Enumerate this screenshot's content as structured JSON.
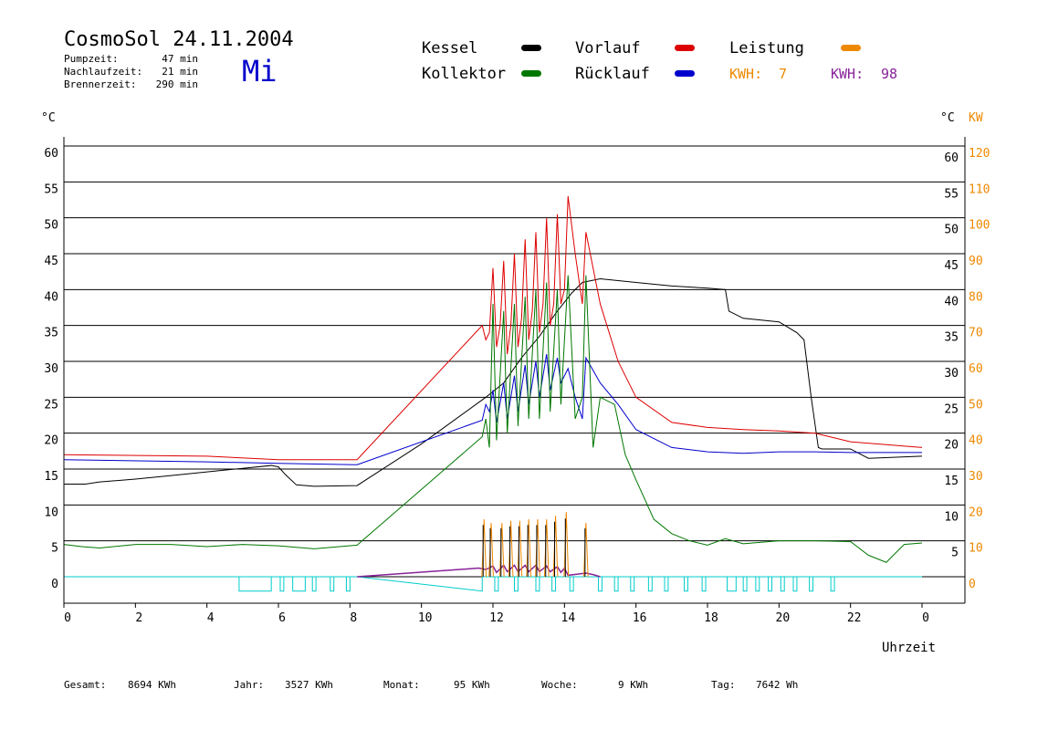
{
  "header": {
    "title": "CosmoSol 24.11.2004",
    "pump_label": "Pumpzeit:",
    "pump_value": "47 min",
    "after_label": "Nachlaufzeit:",
    "after_value": "21 min",
    "burner_label": "Brennerzeit:",
    "burner_value": "290 min",
    "weekday": "Mi"
  },
  "legend": {
    "kessel": "Kessel",
    "kollektor": "Kollektor",
    "vorlauf": "Vorlauf",
    "ruecklauf": "Rücklauf",
    "leistung": "Leistung",
    "kwh1_label": "KWH:",
    "kwh1_value": "7",
    "kwh2_label": "KWH:",
    "kwh2_value": "98"
  },
  "axes": {
    "left_unit": "°C",
    "right_unit": "°C",
    "right_unit2": "KW",
    "x_title": "Uhrzeit"
  },
  "footer": {
    "gesamt_label": "Gesamt:",
    "gesamt_value": "8694 KWh",
    "jahr_label": "Jahr:",
    "jahr_value": "3527 KWh",
    "monat_label": "Monat:",
    "monat_value": "95 KWh",
    "woche_label": "Woche:",
    "woche_value": "9 KWh",
    "tag_label": "Tag:",
    "tag_value": "7642 Wh"
  },
  "colors": {
    "kessel": "#000000",
    "kollektor": "#007700",
    "vorlauf": "#dd0000",
    "ruecklauf": "#0000cc",
    "leistung": "#ee8800",
    "kwh2": "#882299",
    "pump": "#00cccc",
    "weekday": "#0000cc"
  },
  "chart_data": {
    "type": "line",
    "xlabel": "Uhrzeit",
    "xlim": [
      0,
      24
    ],
    "x_ticks": [
      "0",
      "2",
      "4",
      "6",
      "8",
      "10",
      "12",
      "14",
      "16",
      "18",
      "20",
      "22",
      "0"
    ],
    "ylim": [
      0,
      60
    ],
    "y_ticks": [
      "0",
      "5",
      "10",
      "15",
      "20",
      "25",
      "30",
      "35",
      "40",
      "45",
      "50",
      "55",
      "60"
    ],
    "y_ticks_right": [
      "5",
      "10",
      "15",
      "20",
      "25",
      "30",
      "35",
      "40",
      "45",
      "50",
      "55",
      "60"
    ],
    "y2lim": [
      0,
      120
    ],
    "y2_ticks": [
      "0",
      "10",
      "20",
      "30",
      "40",
      "50",
      "60",
      "70",
      "80",
      "90",
      "100",
      "110",
      "120"
    ],
    "grid": true,
    "series": [
      {
        "name": "Kessel",
        "color": "#000000",
        "points": [
          [
            0,
            12.9
          ],
          [
            0.6,
            12.9
          ],
          [
            1,
            13.2
          ],
          [
            2,
            13.6
          ],
          [
            3,
            14.1
          ],
          [
            4,
            14.6
          ],
          [
            5,
            15.1
          ],
          [
            5.8,
            15.5
          ],
          [
            6,
            15.3
          ],
          [
            6.2,
            14.2
          ],
          [
            6.5,
            12.8
          ],
          [
            7,
            12.6
          ],
          [
            8.2,
            12.7
          ],
          [
            10,
            18.5
          ],
          [
            11.8,
            25
          ],
          [
            12.3,
            27
          ],
          [
            12.8,
            30.5
          ],
          [
            13.3,
            33.5
          ],
          [
            13.8,
            37
          ],
          [
            14.2,
            39.5
          ],
          [
            14.5,
            41
          ],
          [
            15,
            41.5
          ],
          [
            16,
            41
          ],
          [
            17,
            40.5
          ],
          [
            18,
            40.2
          ],
          [
            18.5,
            40
          ],
          [
            18.6,
            37
          ],
          [
            19,
            36
          ],
          [
            20,
            35.5
          ],
          [
            20.5,
            34
          ],
          [
            20.7,
            33
          ],
          [
            20.9,
            25
          ],
          [
            21.1,
            18
          ],
          [
            21.2,
            17.8
          ],
          [
            22,
            17.8
          ],
          [
            22.5,
            16.5
          ],
          [
            24,
            16.8
          ]
        ]
      },
      {
        "name": "Vorlauf",
        "color": "#dd0000",
        "points": [
          [
            0,
            17
          ],
          [
            4,
            16.8
          ],
          [
            6,
            16.3
          ],
          [
            8.2,
            16.3
          ],
          [
            11.7,
            35
          ],
          [
            11.8,
            33
          ],
          [
            11.9,
            34
          ],
          [
            12,
            43
          ],
          [
            12.1,
            32
          ],
          [
            12.2,
            35
          ],
          [
            12.3,
            44
          ],
          [
            12.4,
            31
          ],
          [
            12.5,
            35
          ],
          [
            12.6,
            45
          ],
          [
            12.7,
            32
          ],
          [
            12.8,
            36
          ],
          [
            12.9,
            47
          ],
          [
            13.0,
            33
          ],
          [
            13.1,
            37
          ],
          [
            13.2,
            48
          ],
          [
            13.3,
            34
          ],
          [
            13.4,
            38
          ],
          [
            13.5,
            50
          ],
          [
            13.6,
            35
          ],
          [
            13.7,
            38
          ],
          [
            13.8,
            50.5
          ],
          [
            13.9,
            38
          ],
          [
            14.0,
            40
          ],
          [
            14.1,
            53
          ],
          [
            14.3,
            45
          ],
          [
            14.5,
            38
          ],
          [
            14.6,
            48
          ],
          [
            15,
            38
          ],
          [
            15.5,
            30
          ],
          [
            16,
            25
          ],
          [
            17,
            21.5
          ],
          [
            18,
            20.8
          ],
          [
            19,
            20.5
          ],
          [
            20,
            20.3
          ],
          [
            21,
            20
          ],
          [
            22,
            18.8
          ],
          [
            24,
            18
          ]
        ]
      },
      {
        "name": "Rücklauf",
        "color": "#0000cc",
        "points": [
          [
            0,
            16.3
          ],
          [
            4,
            16
          ],
          [
            6,
            15.8
          ],
          [
            8.2,
            15.6
          ],
          [
            11.7,
            21.8
          ],
          [
            11.8,
            24
          ],
          [
            11.9,
            23
          ],
          [
            12,
            26
          ],
          [
            12.1,
            21.5
          ],
          [
            12.3,
            27
          ],
          [
            12.4,
            22
          ],
          [
            12.6,
            28
          ],
          [
            12.7,
            23
          ],
          [
            12.9,
            29.5
          ],
          [
            13.0,
            24
          ],
          [
            13.2,
            30
          ],
          [
            13.3,
            25
          ],
          [
            13.5,
            31
          ],
          [
            13.6,
            26
          ],
          [
            13.8,
            30.5
          ],
          [
            13.9,
            27
          ],
          [
            14.1,
            29
          ],
          [
            14.3,
            25
          ],
          [
            14.5,
            22
          ],
          [
            14.6,
            30.5
          ],
          [
            15,
            27
          ],
          [
            15.5,
            24
          ],
          [
            16,
            20.5
          ],
          [
            17,
            18
          ],
          [
            18,
            17.4
          ],
          [
            19,
            17.2
          ],
          [
            20,
            17.4
          ],
          [
            21,
            17.4
          ],
          [
            22,
            17.3
          ],
          [
            24,
            17.3
          ]
        ]
      },
      {
        "name": "Kollektor",
        "color": "#007700",
        "points": [
          [
            0,
            4.5
          ],
          [
            0.5,
            4.2
          ],
          [
            1,
            4
          ],
          [
            2,
            4.5
          ],
          [
            3,
            4.5
          ],
          [
            4,
            4.2
          ],
          [
            5,
            4.5
          ],
          [
            6,
            4.3
          ],
          [
            7,
            3.9
          ],
          [
            8.2,
            4.4
          ],
          [
            11.7,
            19.5
          ],
          [
            11.8,
            22
          ],
          [
            11.9,
            18
          ],
          [
            12,
            38
          ],
          [
            12.1,
            19
          ],
          [
            12.3,
            37
          ],
          [
            12.4,
            20
          ],
          [
            12.6,
            38
          ],
          [
            12.7,
            21
          ],
          [
            12.9,
            39
          ],
          [
            13.0,
            22
          ],
          [
            13.2,
            40
          ],
          [
            13.3,
            22
          ],
          [
            13.5,
            41
          ],
          [
            13.6,
            23
          ],
          [
            13.8,
            40
          ],
          [
            13.9,
            24
          ],
          [
            14.1,
            42
          ],
          [
            14.3,
            22
          ],
          [
            14.5,
            25
          ],
          [
            14.6,
            42
          ],
          [
            14.8,
            18
          ],
          [
            15,
            25
          ],
          [
            15.4,
            24
          ],
          [
            15.7,
            17
          ],
          [
            16,
            13.5
          ],
          [
            16.5,
            8
          ],
          [
            17,
            6
          ],
          [
            17.5,
            5
          ],
          [
            18,
            4.4
          ],
          [
            18.5,
            5.3
          ],
          [
            19,
            4.6
          ],
          [
            20,
            5
          ],
          [
            21,
            5
          ],
          [
            22,
            4.9
          ],
          [
            22.5,
            3
          ],
          [
            23,
            2
          ],
          [
            23.5,
            4.5
          ],
          [
            24,
            4.7
          ]
        ]
      }
    ],
    "pumpe": {
      "name": "Pumpe",
      "color": "#00cccc",
      "points": [
        [
          0,
          0
        ],
        [
          8.2,
          0
        ],
        [
          11.7,
          -2
        ],
        [
          11.7,
          0
        ],
        [
          24,
          0
        ]
      ],
      "on_intervals": [
        [
          4.9,
          5.8
        ],
        [
          6.05,
          6.15
        ],
        [
          6.4,
          6.75
        ],
        [
          6.95,
          7.05
        ],
        [
          7.45,
          7.55
        ],
        [
          7.9,
          8.0
        ],
        [
          12.05,
          12.15
        ],
        [
          12.6,
          12.7
        ],
        [
          13.2,
          13.3
        ],
        [
          13.65,
          13.75
        ],
        [
          14.15,
          14.25
        ],
        [
          14.95,
          15.05
        ],
        [
          15.4,
          15.5
        ],
        [
          15.85,
          15.95
        ],
        [
          16.35,
          16.45
        ],
        [
          16.8,
          16.9
        ],
        [
          17.35,
          17.45
        ],
        [
          17.85,
          17.95
        ],
        [
          18.55,
          18.8
        ],
        [
          19.0,
          19.1
        ],
        [
          19.35,
          19.45
        ],
        [
          19.7,
          19.8
        ],
        [
          20.05,
          20.15
        ],
        [
          20.4,
          20.5
        ],
        [
          20.85,
          20.95
        ],
        [
          21.45,
          21.55
        ]
      ]
    },
    "leistung": {
      "name": "Leistung",
      "color": "#ee8800",
      "peaks": [
        [
          11.75,
          8
        ],
        [
          11.95,
          7.5
        ],
        [
          12.25,
          7.5
        ],
        [
          12.5,
          7.8
        ],
        [
          12.75,
          7.8
        ],
        [
          13.0,
          8
        ],
        [
          13.25,
          8
        ],
        [
          13.5,
          8
        ],
        [
          13.75,
          8.5
        ],
        [
          14.05,
          9
        ],
        [
          14.6,
          7.5
        ]
      ]
    },
    "kwh2": {
      "color": "#882299",
      "points": [
        [
          8.2,
          0
        ],
        [
          11.6,
          1.2
        ],
        [
          11.8,
          1
        ],
        [
          12.0,
          1.5
        ],
        [
          12.1,
          0.6
        ],
        [
          12.3,
          1.6
        ],
        [
          12.4,
          0.7
        ],
        [
          12.6,
          1.6
        ],
        [
          12.7,
          0.7
        ],
        [
          12.9,
          1.6
        ],
        [
          13.0,
          0.7
        ],
        [
          13.2,
          1.6
        ],
        [
          13.3,
          0.7
        ],
        [
          13.5,
          1.5
        ],
        [
          13.6,
          0.7
        ],
        [
          13.8,
          1.4
        ],
        [
          13.9,
          0.6
        ],
        [
          14.0,
          1.2
        ],
        [
          14.1,
          0.2
        ],
        [
          14.6,
          0.5
        ],
        [
          14.8,
          0.3
        ],
        [
          15,
          0
        ]
      ]
    }
  }
}
